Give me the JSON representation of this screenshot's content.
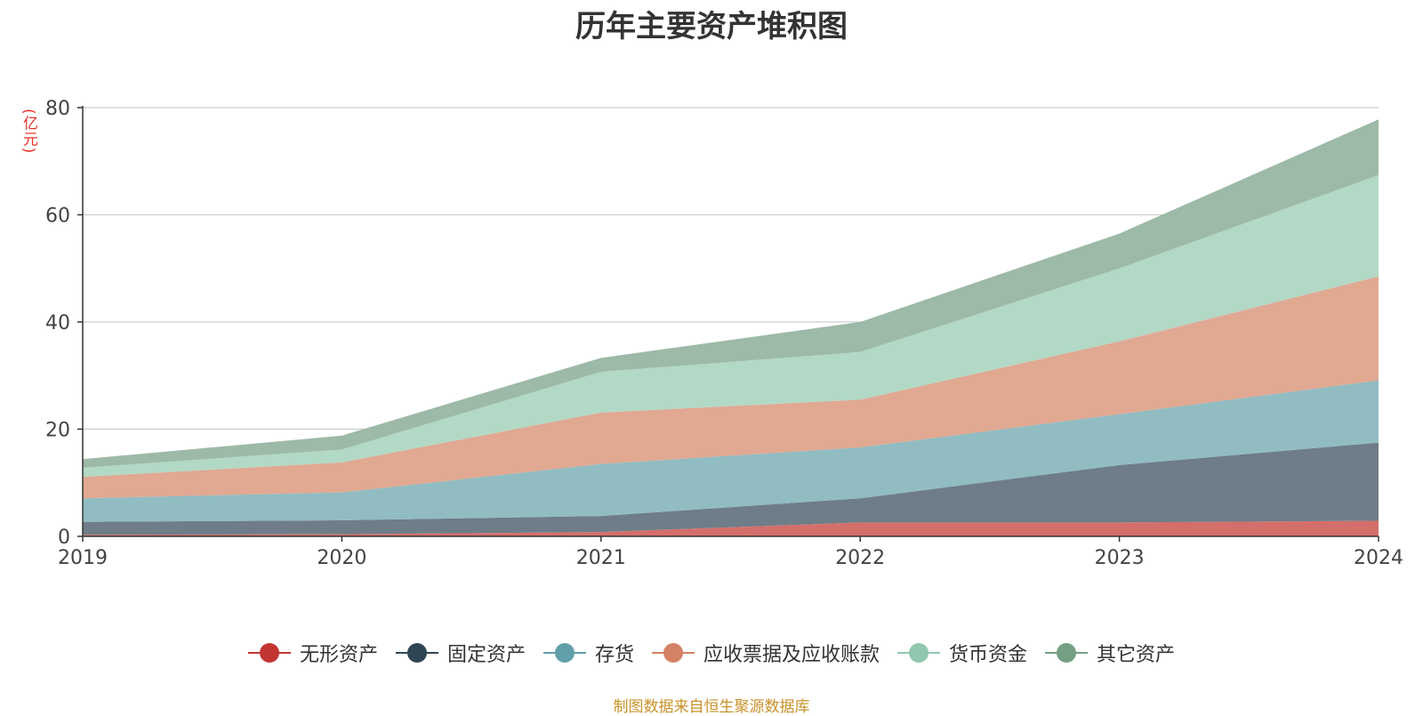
{
  "chart_data": {
    "type": "area",
    "stacked": true,
    "title": "历年主要资产堆积图",
    "ylabel": "(亿元)",
    "xlabel": "",
    "categories": [
      "2019",
      "2020",
      "2021",
      "2022",
      "2023",
      "2024"
    ],
    "ylim": [
      0,
      80
    ],
    "yticks": [
      0,
      20,
      40,
      60,
      80
    ],
    "grid": true,
    "legend_position": "bottom",
    "series": [
      {
        "name": "无形资产",
        "color": "#c23531",
        "fill": "#d46e6b",
        "values": [
          0.3,
          0.4,
          0.8,
          2.6,
          2.6,
          2.9
        ]
      },
      {
        "name": "固定资产",
        "color": "#2f4554",
        "fill": "#6e7d87",
        "values": [
          2.4,
          2.6,
          3.0,
          4.5,
          10.7,
          14.6
        ]
      },
      {
        "name": "存货",
        "color": "#61a0a8",
        "fill": "#91bcc2",
        "values": [
          4.4,
          5.2,
          9.7,
          9.5,
          9.5,
          11.6
        ]
      },
      {
        "name": "应收票据及应收账款",
        "color": "#d48265",
        "fill": "#e1a892",
        "values": [
          4.0,
          5.6,
          9.6,
          8.9,
          13.6,
          19.4
        ]
      },
      {
        "name": "货币资金",
        "color": "#91c7ae",
        "fill": "#b2d9c6",
        "values": [
          1.7,
          2.4,
          7.6,
          8.9,
          13.6,
          18.9
        ]
      },
      {
        "name": "其它资产",
        "color": "#749f83",
        "fill": "#9db9a7",
        "values": [
          1.6,
          2.6,
          2.6,
          5.6,
          6.5,
          10.4
        ]
      }
    ],
    "source": "制图数据来自恒生聚源数据库"
  }
}
